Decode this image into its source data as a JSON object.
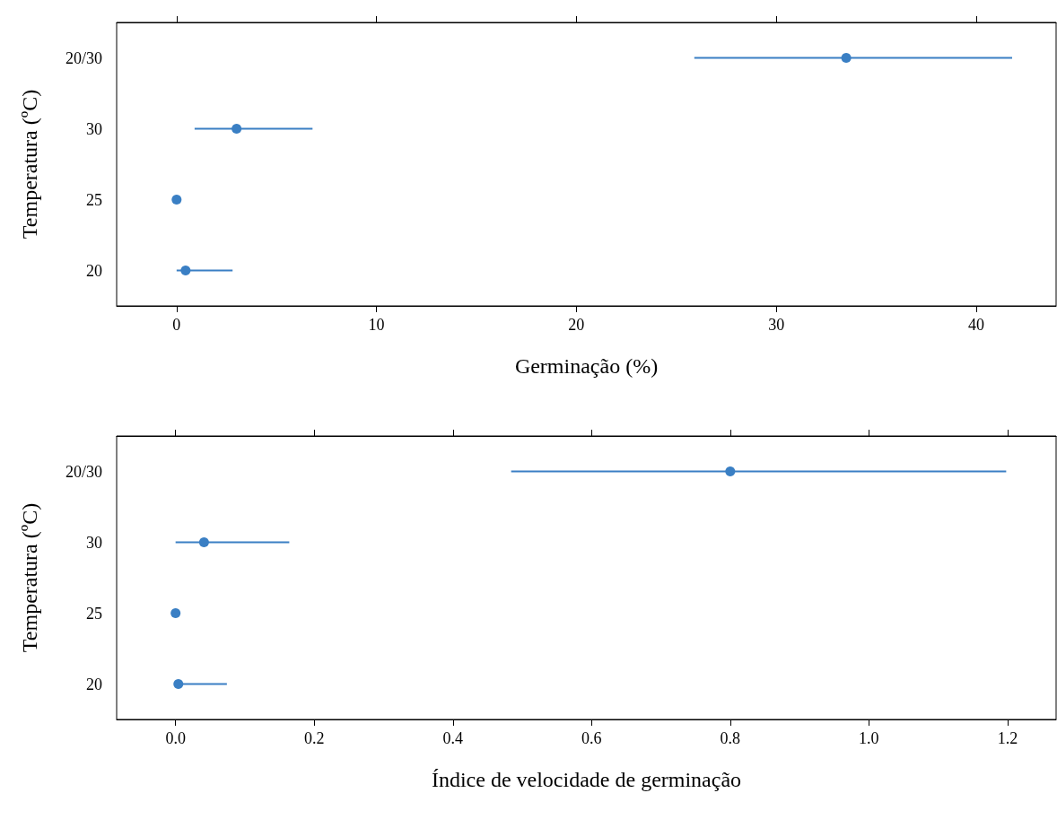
{
  "chart_data": [
    {
      "type": "scatter",
      "orientation": "horizontal",
      "xlabel": "Germinação (%)",
      "ylabel": "Temperatura (ºC)",
      "categories": [
        "20/30",
        "30",
        "25",
        "20"
      ],
      "color": "#3a7fc4",
      "marker": "circle",
      "grid": false,
      "values": [
        33.5,
        3.0,
        0,
        0.45
      ],
      "errors": [
        [
          25.9,
          41.8
        ],
        [
          0.9,
          6.8
        ],
        null,
        [
          0,
          2.8
        ]
      ],
      "xlim": [
        -3,
        44
      ],
      "xticks": [
        0,
        10,
        20,
        30,
        40
      ]
    },
    {
      "type": "scatter",
      "orientation": "horizontal",
      "xlabel": "Índice de velocidade de germinação",
      "ylabel": "Temperatura (ºC)",
      "categories": [
        "20/30",
        "30",
        "25",
        "20"
      ],
      "color": "#3a7fc4",
      "marker": "circle",
      "grid": false,
      "values": [
        0.8,
        0.041,
        0,
        0.004
      ],
      "errors": [
        [
          0.484,
          1.198
        ],
        [
          0,
          0.164
        ],
        null,
        [
          0,
          0.074
        ]
      ],
      "xlim": [
        -0.085,
        1.27
      ],
      "xticks": [
        {
          "value": 0,
          "label": "0.0"
        },
        {
          "value": 0.2,
          "label": "0.2"
        },
        {
          "value": 0.4,
          "label": "0.4"
        },
        {
          "value": 0.6,
          "label": "0.6"
        },
        {
          "value": 0.8,
          "label": "0.8"
        },
        {
          "value": 1,
          "label": "1.0"
        },
        {
          "value": 1.2,
          "label": "1.2"
        }
      ]
    }
  ]
}
